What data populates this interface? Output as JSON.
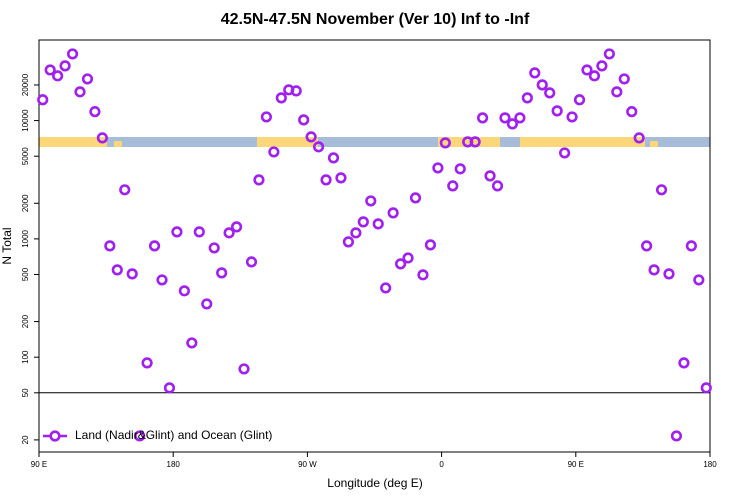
{
  "chart_data": {
    "type": "scatter",
    "title": "42.5N-47.5N November (Ver 10)   Inf to -Inf",
    "x_label": "Longitude (deg E)",
    "y_label": "N Total",
    "x": [
      92.5,
      97.5,
      102.5,
      107.5,
      112.5,
      117.5,
      122.5,
      127.5,
      132.5,
      137.5,
      142.5,
      147.5,
      152.5,
      157.5,
      162.5,
      167.5,
      172.5,
      177.5,
      182.5,
      187.5,
      192.5,
      197.5,
      202.5,
      207.5,
      212.5,
      217.5,
      222.5,
      227.5,
      232.5,
      237.5,
      242.5,
      247.5,
      252.5,
      257.5,
      262.5,
      267.5,
      272.5,
      277.5,
      282.5,
      287.5,
      292.5,
      297.5,
      302.5,
      307.5,
      312.5,
      317.5,
      322.5,
      327.5,
      332.5,
      337.5,
      342.5,
      347.5,
      352.5,
      357.5,
      362.5,
      367.5,
      372.5,
      377.5,
      382.5,
      387.5,
      392.5,
      397.5,
      402.5,
      407.5,
      412.5,
      417.5,
      422.5,
      427.5,
      432.5,
      437.5,
      442.5,
      447.5,
      452.5,
      457.5,
      462.5,
      467.5,
      472.5,
      477.5,
      482.5,
      487.5,
      492.5,
      497.5,
      502.5,
      507.5,
      512.5,
      517.5,
      522.5,
      527.5,
      532.5,
      537.5
    ],
    "series": [
      {
        "name": "Land (Nadir&Glint) and Ocean (Glint)",
        "color": "#a020f0",
        "values": [
          15000,
          26800,
          23900,
          29000,
          36600,
          17500,
          22500,
          11900,
          7140,
          873,
          547,
          2600,
          506,
          21.6,
          89.5,
          873,
          450,
          55.1,
          1146,
          364,
          132,
          1146,
          282,
          839,
          516,
          1125,
          1264,
          79.6,
          639,
          3155,
          10740,
          5435,
          15560,
          18200,
          17820,
          10140,
          7280,
          6000,
          3155,
          4840,
          3280,
          944,
          1125,
          1393,
          2094,
          1340,
          385,
          1660,
          615,
          690,
          2222,
          497,
          890,
          3980,
          6480,
          2805,
          3910,
          6610,
          6610,
          10540,
          3410,
          2805,
          10540,
          9380,
          10540,
          15560,
          25300,
          20040,
          17150,
          12080,
          5330,
          10740,
          15000,
          26800,
          23900,
          29000,
          36600,
          17500,
          22500,
          11900,
          7140,
          873,
          547,
          2600,
          506,
          21.6,
          89.5,
          873,
          450,
          55.1
        ]
      }
    ],
    "xlim": [
      90,
      540
    ],
    "xticks": [
      {
        "value": 90,
        "label": "90 E"
      },
      180,
      {
        "value": 270,
        "label": "90 W"
      },
      {
        "value": 360,
        "label": "0"
      },
      {
        "value": 450,
        "label": "90 E"
      },
      {
        "value": 540,
        "label": "180"
      }
    ],
    "ylim": [
      15.8,
      48000
    ],
    "log_y": true,
    "yticks": [
      20,
      50,
      100,
      200,
      500,
      1000,
      2000,
      5000,
      10000,
      20000
    ],
    "hline": 50,
    "legend": "bottom-left"
  }
}
